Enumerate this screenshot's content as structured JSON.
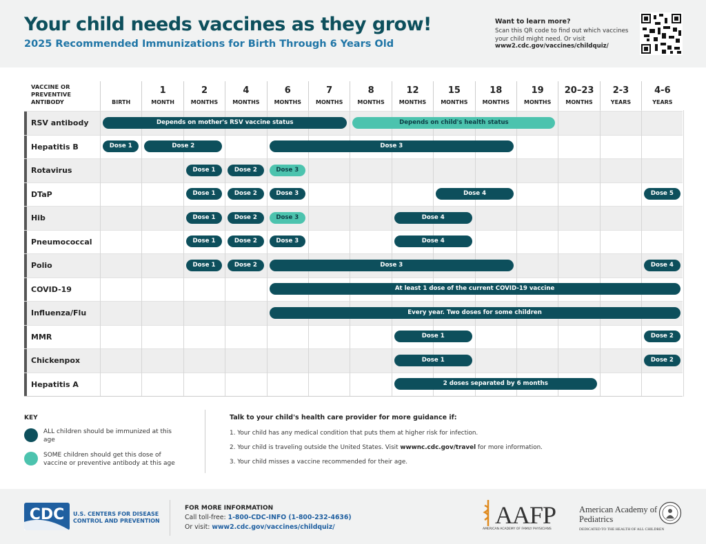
{
  "header": {
    "title": "Your child needs vaccines as they grow!",
    "subtitle": "2025 Recommended Immunizations for Birth Through 6 Years Old",
    "learn_more": {
      "heading": "Want to learn more?",
      "text": "Scan this QR code to find out which vaccines your child might need. Or visit",
      "url": "www2.cdc.gov/vaccines/childquiz/"
    }
  },
  "table": {
    "header_label": "VACCINE OR PREVENTIVE ANTIBODY",
    "columns": [
      {
        "unit": "BIRTH"
      },
      {
        "num": "1",
        "unit": "MONTH"
      },
      {
        "num": "2",
        "unit": "MONTHS"
      },
      {
        "num": "4",
        "unit": "MONTHS"
      },
      {
        "num": "6",
        "unit": "MONTHS"
      },
      {
        "num": "7",
        "unit": "MONTHS"
      },
      {
        "num": "8",
        "unit": "MONTHS"
      },
      {
        "num": "12",
        "unit": "MONTHS"
      },
      {
        "num": "15",
        "unit": "MONTHS"
      },
      {
        "num": "18",
        "unit": "MONTHS"
      },
      {
        "num": "19",
        "unit": "MONTHS"
      },
      {
        "num": "20–23",
        "unit": "MONTHS"
      },
      {
        "num": "2-3",
        "unit": "YEARS"
      },
      {
        "num": "4-6",
        "unit": "YEARS"
      }
    ],
    "rows": [
      {
        "name": "RSV antibody",
        "doses": [
          {
            "label": "Depends on mother's RSV vaccine status",
            "color": "#0d4f5c"
          },
          {
            "label": "Depends on child's health status",
            "color": "#4cc3ae"
          }
        ]
      },
      {
        "name": "Hepatitis B",
        "doses": [
          {
            "label": "Dose 1",
            "color": "#0d4f5c"
          },
          {
            "label": "Dose 2",
            "color": "#0d4f5c"
          },
          {
            "label": "Dose 3",
            "color": "#0d4f5c"
          }
        ]
      },
      {
        "name": "Rotavirus",
        "doses": [
          {
            "label": "Dose 1",
            "color": "#0d4f5c"
          },
          {
            "label": "Dose 2",
            "color": "#0d4f5c"
          },
          {
            "label": "Dose 3",
            "color": "#4cc3ae"
          }
        ]
      },
      {
        "name": "DTaP",
        "doses": [
          {
            "label": "Dose 1",
            "color": "#0d4f5c"
          },
          {
            "label": "Dose 2",
            "color": "#0d4f5c"
          },
          {
            "label": "Dose 3",
            "color": "#0d4f5c"
          },
          {
            "label": "Dose 4",
            "color": "#0d4f5c"
          },
          {
            "label": "Dose 5",
            "color": "#0d4f5c"
          }
        ]
      },
      {
        "name": "Hib",
        "doses": [
          {
            "label": "Dose 1",
            "color": "#0d4f5c"
          },
          {
            "label": "Dose 2",
            "color": "#0d4f5c"
          },
          {
            "label": "Dose 3",
            "color": "#4cc3ae"
          },
          {
            "label": "Dose 4",
            "color": "#0d4f5c"
          }
        ]
      },
      {
        "name": "Pneumococcal",
        "doses": [
          {
            "label": "Dose 1",
            "color": "#0d4f5c"
          },
          {
            "label": "Dose 2",
            "color": "#0d4f5c"
          },
          {
            "label": "Dose 3",
            "color": "#0d4f5c"
          },
          {
            "label": "Dose 4",
            "color": "#0d4f5c"
          }
        ]
      },
      {
        "name": "Polio",
        "doses": [
          {
            "label": "Dose 1",
            "color": "#0d4f5c"
          },
          {
            "label": "Dose 2",
            "color": "#0d4f5c"
          },
          {
            "label": "Dose 3",
            "color": "#0d4f5c"
          },
          {
            "label": "Dose 4",
            "color": "#0d4f5c"
          }
        ]
      },
      {
        "name": "COVID-19",
        "doses": [
          {
            "label": "At least 1 dose of the current COVID-19 vaccine",
            "color": "#0d4f5c"
          }
        ]
      },
      {
        "name": "Influenza/Flu",
        "doses": [
          {
            "label": "Every year. Two doses for some children",
            "color": "#0d4f5c"
          }
        ]
      },
      {
        "name": "MMR",
        "doses": [
          {
            "label": "Dose 1",
            "color": "#0d4f5c"
          },
          {
            "label": "Dose 2",
            "color": "#0d4f5c"
          }
        ]
      },
      {
        "name": "Chickenpox",
        "doses": [
          {
            "label": "Dose 1",
            "color": "#0d4f5c"
          },
          {
            "label": "Dose 2",
            "color": "#0d4f5c"
          }
        ]
      },
      {
        "name": "Hepatitis A",
        "doses": [
          {
            "label": "2 doses separated by 6 months",
            "color": "#0d4f5c"
          }
        ]
      }
    ]
  },
  "key": {
    "title": "KEY",
    "items": [
      {
        "color": "#0d4f5c",
        "text": "ALL children should be immunized at this age"
      },
      {
        "color": "#4cc3ae",
        "text": "SOME children should get this dose of vaccine or preventive antibody at this age"
      }
    ]
  },
  "guidance": {
    "heading": "Talk to your child's health care provider for more guidance if:",
    "items": [
      {
        "text": "1. Your child has any medical condition that puts them at higher risk for infection."
      },
      {
        "text": "2. Your child is traveling outside the United States. Visit",
        "link": "wwwnc.cdc.gov/travel",
        "after": "for more information."
      },
      {
        "text": "3. Your child misses a vaccine recommended for their age."
      }
    ]
  },
  "footer": {
    "cdc": {
      "abbr": "CDC",
      "name": "U.S. CENTERS FOR DISEASE CONTROL AND PREVENTION"
    },
    "info": {
      "heading": "FOR MORE INFORMATION",
      "call_label": "Call toll-free:",
      "phone": "1-800-CDC-INFO (1-800-232-4636)",
      "visit_label": "Or visit:",
      "url": "www2.cdc.gov/vaccines/childquiz/"
    },
    "aafp": {
      "name": "AAFP",
      "full": "AMERICAN ACADEMY OF FAMILY PHYSICIANS"
    },
    "aap": {
      "name": "American Academy of Pediatrics",
      "tagline": "DEDICATED TO THE HEALTH OF ALL CHILDREN"
    }
  }
}
